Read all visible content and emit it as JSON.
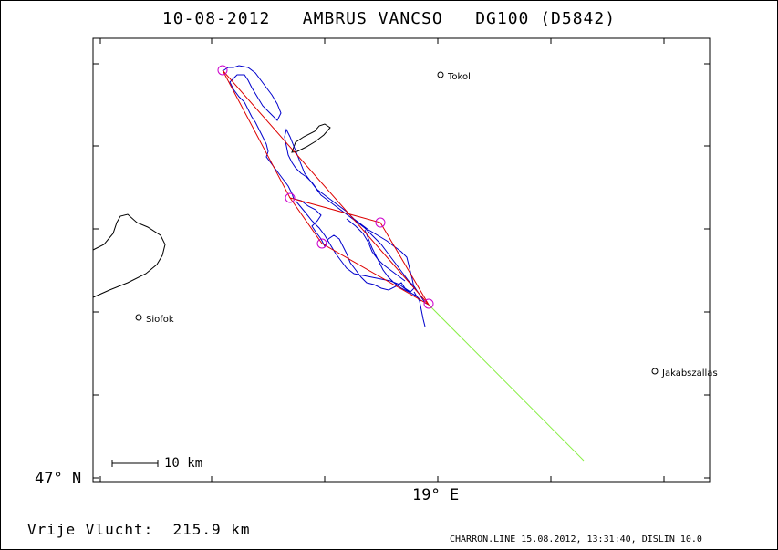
{
  "title": "10-08-2012   AMBRUS VANCSO   DG100 (D5842)",
  "axes": {
    "lat_label": "47° N",
    "lon_label": "19° E"
  },
  "places": [
    {
      "name": "Tokol"
    },
    {
      "name": "Siofok"
    },
    {
      "name": "Jakabszallas"
    }
  ],
  "scale_bar": {
    "label": "10 km"
  },
  "footer": {
    "distance": "Vrije Vlucht:  215.9 km",
    "credit": "CHARRON.LINE 15.08.2012, 13:31:40, DISLIN 10.0"
  },
  "colors": {
    "track": "#0000cc",
    "task": "#dd0000",
    "turnpoint": "#cc00cc",
    "final_glide": "#88ee44",
    "coast": "#000000"
  }
}
